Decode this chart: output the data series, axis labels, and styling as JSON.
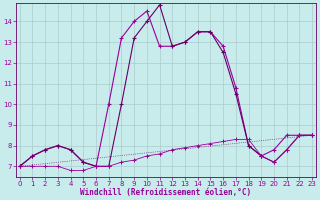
{
  "xlabel": "Windchill (Refroidissement éolien,°C)",
  "background_color": "#c8ecec",
  "line_color1": "#990099",
  "line_color2": "#660066",
  "grid_color": "#aacccc",
  "hours": [
    0,
    1,
    2,
    3,
    4,
    5,
    6,
    7,
    8,
    9,
    10,
    11,
    12,
    13,
    14,
    15,
    16,
    17,
    18,
    19,
    20,
    21,
    22,
    23
  ],
  "series1": [
    7.0,
    7.5,
    7.8,
    8.0,
    7.8,
    7.2,
    7.0,
    10.0,
    13.2,
    14.0,
    14.5,
    12.8,
    12.8,
    13.0,
    13.5,
    13.5,
    12.8,
    10.8,
    8.0,
    7.5,
    7.8,
    8.5,
    8.5,
    8.5
  ],
  "series2": [
    7.0,
    7.5,
    7.8,
    8.0,
    7.8,
    7.2,
    7.0,
    7.0,
    10.0,
    13.2,
    14.0,
    14.8,
    12.8,
    13.0,
    13.5,
    13.5,
    12.5,
    10.5,
    8.0,
    7.5,
    7.2,
    7.8,
    8.5,
    8.5
  ],
  "series3": [
    7.0,
    7.0,
    7.0,
    7.0,
    6.8,
    6.8,
    7.0,
    7.0,
    7.2,
    7.3,
    7.5,
    7.6,
    7.8,
    7.9,
    8.0,
    8.1,
    8.2,
    8.3,
    8.3,
    7.5,
    7.2,
    7.8,
    8.5,
    8.5
  ],
  "ylim_min": 6.5,
  "ylim_max": 14.9,
  "xlim_min": -0.3,
  "xlim_max": 23.3,
  "yticks": [
    7,
    8,
    9,
    10,
    11,
    12,
    13,
    14
  ],
  "xticks": [
    0,
    1,
    2,
    3,
    4,
    5,
    6,
    7,
    8,
    9,
    10,
    11,
    12,
    13,
    14,
    15,
    16,
    17,
    18,
    19,
    20,
    21,
    22,
    23
  ],
  "xlabel_fontsize": 5.5,
  "tick_fontsize": 5,
  "linewidth": 0.8,
  "markersize": 2.5
}
